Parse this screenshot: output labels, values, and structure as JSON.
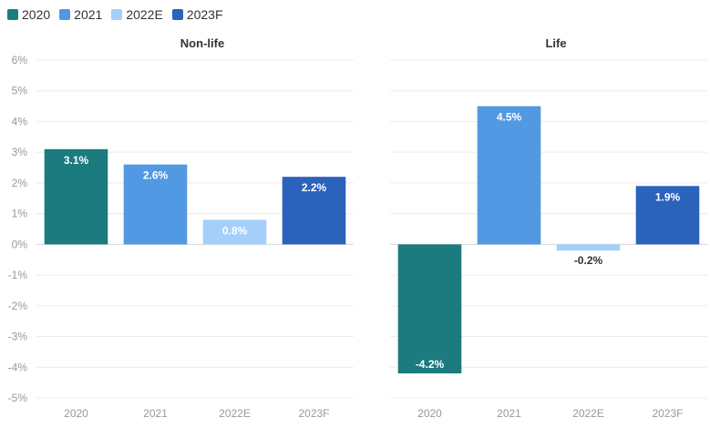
{
  "chart_data": {
    "type": "bar",
    "legend": [
      {
        "name": "2020",
        "color": "#1b7b7e"
      },
      {
        "name": "2021",
        "color": "#5299e3"
      },
      {
        "name": "2022E",
        "color": "#a3cffa"
      },
      {
        "name": "2023F",
        "color": "#2a62bc"
      }
    ],
    "ylim": [
      -5,
      6
    ],
    "yticks": [
      "6%",
      "5%",
      "4%",
      "3%",
      "2%",
      "1%",
      "0%",
      "-1%",
      "-2%",
      "-3%",
      "-4%",
      "-5%"
    ],
    "grid": true,
    "legend_placement": "top-left",
    "panels": [
      {
        "title": "Non-life",
        "categories": [
          "2020",
          "2021",
          "2022E",
          "2023F"
        ],
        "values": [
          3.1,
          2.6,
          0.8,
          2.2
        ],
        "labels": [
          "3.1%",
          "2.6%",
          "0.8%",
          "2.2%"
        ]
      },
      {
        "title": "Life",
        "categories": [
          "2020",
          "2021",
          "2022E",
          "2023F"
        ],
        "values": [
          -4.2,
          4.5,
          -0.2,
          1.9
        ],
        "labels": [
          "-4.2%",
          "4.5%",
          "-0.2%",
          "1.9%"
        ]
      }
    ]
  }
}
